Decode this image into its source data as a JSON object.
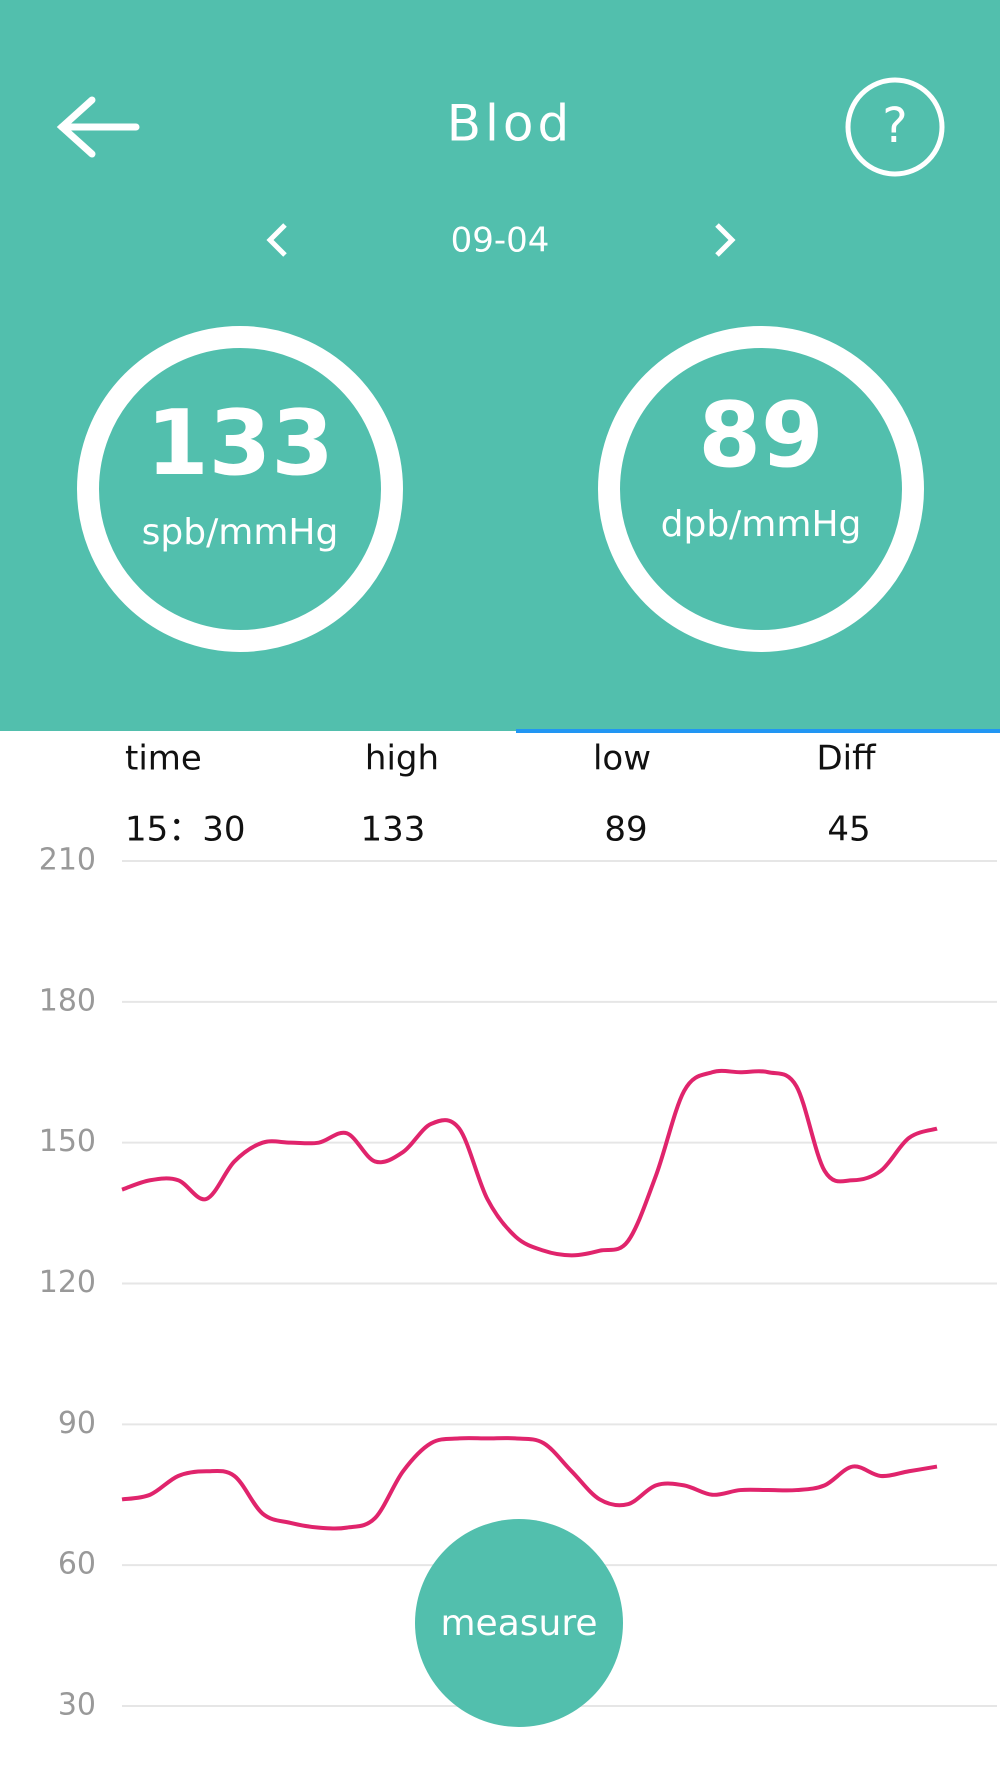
{
  "header": {
    "title": "Blod",
    "date": "09-04"
  },
  "readings": [
    {
      "value": 133,
      "unit": "spb/mmHg"
    },
    {
      "value": 89,
      "unit": "dpb/mmHg"
    }
  ],
  "table": {
    "headers": [
      "time",
      "high",
      "low",
      "Diff"
    ],
    "rows": [
      [
        "15：30",
        "133",
        "89",
        "45"
      ]
    ]
  },
  "chart_data": {
    "type": "line",
    "categories": [
      null,
      null,
      null,
      null,
      null,
      null,
      null,
      null,
      null,
      null,
      null,
      null,
      null,
      null,
      null,
      null,
      null,
      null,
      null,
      null,
      null,
      null,
      null,
      null,
      null,
      null,
      null,
      null,
      null,
      null
    ],
    "series": [
      {
        "color": "#e0246c",
        "values": [
          140,
          142,
          142,
          138,
          146,
          150,
          150,
          150,
          152,
          146,
          148,
          154,
          153,
          138,
          130,
          127,
          126,
          127,
          129,
          143,
          161,
          165,
          165,
          165,
          162,
          144,
          142,
          144,
          151,
          153
        ]
      },
      {
        "color": "#e0246c",
        "values": [
          74,
          75,
          79,
          80,
          79,
          71,
          69,
          68,
          68,
          70,
          80,
          86,
          87,
          87,
          87,
          86,
          80,
          74,
          73,
          77,
          77,
          75,
          76,
          76,
          76,
          77,
          81,
          79,
          80,
          81
        ]
      }
    ],
    "ylim": [
      30,
      210
    ],
    "yticks": [
      30,
      60,
      90,
      120,
      150,
      180,
      210
    ],
    "grid": true
  },
  "button": "measure"
}
